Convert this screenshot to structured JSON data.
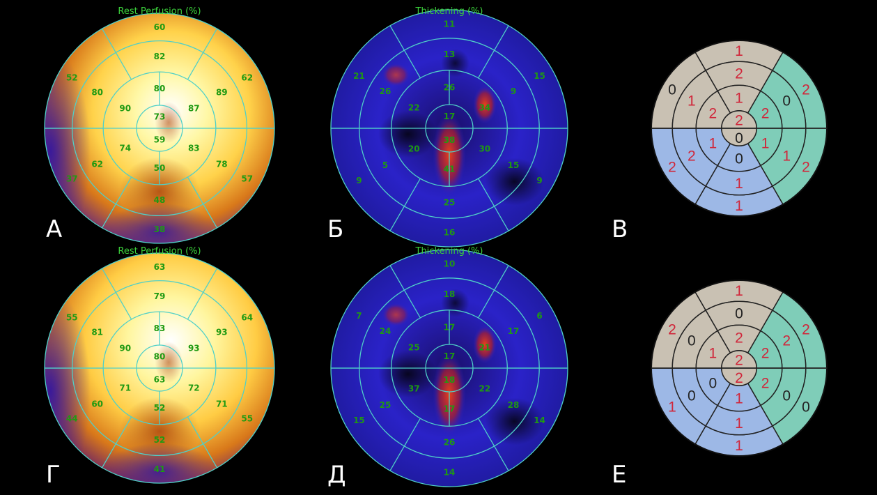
{
  "colors": {
    "polar_grid": "#4fd0c8",
    "polar_number": "#1f9a12",
    "title_green": "#3cd23c",
    "score_red": "#d0263a",
    "score_black": "#222222",
    "region_gray": "#c9c1b3",
    "region_teal": "#7fcdb8",
    "region_blue": "#9db8e6"
  },
  "panels": [
    {
      "letter": "А",
      "title": "Rest Perfusion (%)",
      "kind": "perfusion",
      "segments": {
        "outer": [
          "60",
          "62",
          "57",
          "38",
          "37",
          "52"
        ],
        "mid": [
          "82",
          "89",
          "78",
          "48",
          "62",
          "80"
        ],
        "inner": [
          "80",
          "87",
          "83",
          "50",
          "74",
          "90"
        ],
        "apex": [
          "73",
          "59"
        ]
      }
    },
    {
      "letter": "Б",
      "title": "Thickening (%)",
      "kind": "thickening",
      "segments": {
        "outer": [
          "11",
          "15",
          "9",
          "16",
          "9",
          "21"
        ],
        "mid": [
          "13",
          "9",
          "15",
          "25",
          "5",
          "26"
        ],
        "inner": [
          "26",
          "34",
          "30",
          "41",
          "20",
          "22"
        ],
        "apex": [
          "17",
          "38"
        ]
      }
    },
    {
      "letter": "В",
      "kind": "score",
      "segments": {
        "outer": [
          "1",
          "2",
          "2",
          "1",
          "2",
          "0"
        ],
        "mid": [
          "2",
          "0",
          "1",
          "1",
          "2",
          "1"
        ],
        "inner": [
          "1",
          "2",
          "1",
          "0",
          "1",
          "2"
        ],
        "apex": [
          "2",
          "0"
        ]
      },
      "outer_colors": [
        "gray",
        "teal",
        "teal",
        "blue",
        "blue",
        "gray"
      ],
      "mid_colors": [
        "gray",
        "teal",
        "teal",
        "blue",
        "blue",
        "gray"
      ],
      "inner_colors": [
        "gray",
        "teal",
        "teal",
        "blue",
        "blue",
        "gray"
      ],
      "red_cells": [
        "o0",
        "o1",
        "o2",
        "o3",
        "o4",
        "m0",
        "m2",
        "m3",
        "m4",
        "m5",
        "i0",
        "i1",
        "i2",
        "i4",
        "i5",
        "a0"
      ]
    },
    {
      "letter": "Г",
      "title": "Rest Perfusion (%)",
      "kind": "perfusion",
      "segments": {
        "outer": [
          "63",
          "64",
          "55",
          "41",
          "44",
          "55"
        ],
        "mid": [
          "79",
          "93",
          "71",
          "52",
          "60",
          "81"
        ],
        "inner": [
          "83",
          "93",
          "72",
          "52",
          "71",
          "90"
        ],
        "apex": [
          "80",
          "63"
        ]
      }
    },
    {
      "letter": "Д",
      "title": "Thickening (%)",
      "kind": "thickening",
      "segments": {
        "outer": [
          "10",
          "6",
          "14",
          "14",
          "15",
          "7"
        ],
        "mid": [
          "18",
          "17",
          "28",
          "26",
          "25",
          "24"
        ],
        "inner": [
          "17",
          "21",
          "22",
          "17",
          "37",
          "25"
        ],
        "apex": [
          "17",
          "18"
        ]
      }
    },
    {
      "letter": "Е",
      "kind": "score",
      "segments": {
        "outer": [
          "1",
          "2",
          "0",
          "1",
          "1",
          "2"
        ],
        "mid": [
          "0",
          "2",
          "0",
          "1",
          "0",
          "0"
        ],
        "inner": [
          "2",
          "2",
          "2",
          "1",
          "0",
          "1"
        ],
        "apex": [
          "2",
          "2"
        ]
      },
      "outer_colors": [
        "gray",
        "teal",
        "teal",
        "blue",
        "blue",
        "gray"
      ],
      "mid_colors": [
        "gray",
        "teal",
        "teal",
        "blue",
        "blue",
        "gray"
      ],
      "inner_colors": [
        "gray",
        "teal",
        "teal",
        "blue",
        "blue",
        "gray"
      ],
      "red_cells": [
        "o0",
        "o1",
        "o3",
        "o4",
        "o5",
        "m1",
        "m3",
        "i0",
        "i1",
        "i2",
        "i3",
        "i5",
        "a0",
        "a1"
      ]
    }
  ]
}
